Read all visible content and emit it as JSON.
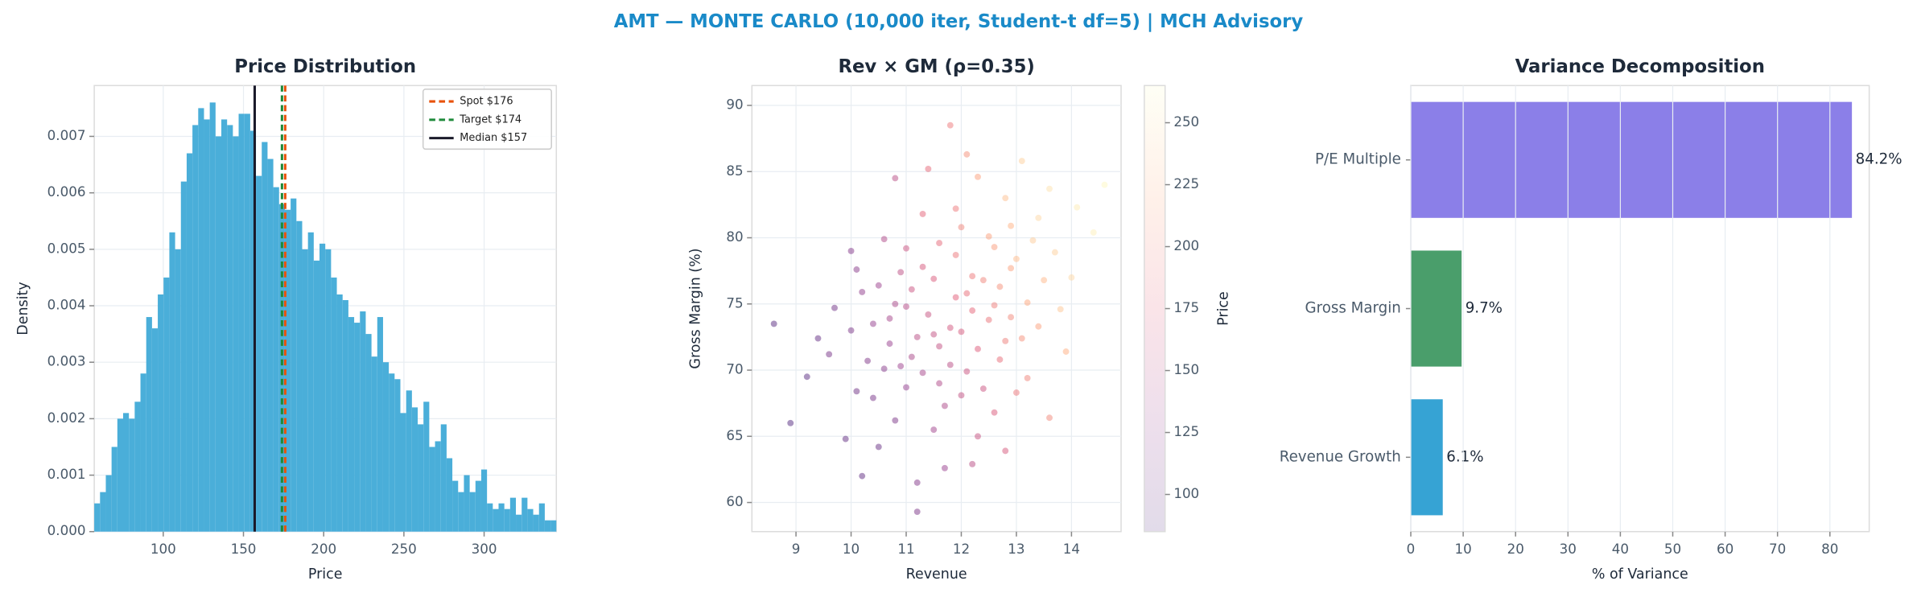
{
  "title": "AMT — MONTE CARLO (10,000 iter, Student-t df=5) | MCH Advisory",
  "chart_data": [
    {
      "type": "histogram",
      "title": "Price Distribution",
      "x_label": "Price",
      "y_label": "Density",
      "color": "#4aaed9",
      "grid": true,
      "bins": [
        57.0,
        60.6,
        64.2,
        67.8,
        71.4,
        75.0,
        78.6,
        82.2,
        85.8,
        89.4,
        93.0,
        96.6,
        100.2,
        103.8,
        107.4,
        111.0,
        114.6,
        118.2,
        121.8,
        125.4,
        129.0,
        132.6,
        136.2,
        139.8,
        143.4,
        147.0,
        150.6,
        154.2,
        157.8,
        161.4,
        165.0,
        168.6,
        172.2,
        175.8,
        179.4,
        183.0,
        186.6,
        190.2,
        193.8,
        197.4,
        201.0,
        204.6,
        208.2,
        211.8,
        215.4,
        219.0,
        222.6,
        226.2,
        229.8,
        233.4,
        237.0,
        240.6,
        244.2,
        247.8,
        251.4,
        255.0,
        258.6,
        262.2,
        265.8,
        269.4,
        273.0,
        276.6,
        280.2,
        283.8,
        287.4,
        291.0,
        294.6,
        298.2,
        301.8,
        305.4,
        309.0,
        312.6,
        316.2,
        319.8,
        323.4,
        327.0,
        330.6,
        334.2,
        337.8,
        341.4,
        345.0
      ],
      "values": [
        0.0005,
        0.0007,
        0.001,
        0.0015,
        0.002,
        0.0021,
        0.002,
        0.0023,
        0.0028,
        0.0038,
        0.0036,
        0.0042,
        0.0045,
        0.0053,
        0.005,
        0.0062,
        0.0067,
        0.0072,
        0.0075,
        0.0073,
        0.0076,
        0.007,
        0.0073,
        0.0072,
        0.007,
        0.0074,
        0.0074,
        0.0071,
        0.0063,
        0.0069,
        0.0066,
        0.0061,
        0.0058,
        0.0057,
        0.0059,
        0.0055,
        0.005,
        0.0053,
        0.0048,
        0.0051,
        0.005,
        0.0045,
        0.0042,
        0.0041,
        0.0038,
        0.0037,
        0.0039,
        0.0035,
        0.0031,
        0.0038,
        0.003,
        0.0028,
        0.0027,
        0.0021,
        0.0025,
        0.0022,
        0.0019,
        0.0023,
        0.0015,
        0.0016,
        0.0019,
        0.0013,
        0.0009,
        0.0007,
        0.001,
        0.0007,
        0.0009,
        0.0011,
        0.0005,
        0.0004,
        0.0005,
        0.0004,
        0.0006,
        0.0003,
        0.0006,
        0.0004,
        0.0003,
        0.0005,
        0.0002,
        0.0002
      ],
      "xlim": [
        57,
        345
      ],
      "xticks": [
        100,
        150,
        200,
        250,
        300
      ],
      "ylim": [
        0,
        0.0079
      ],
      "yticks": [
        {
          "value": 0,
          "label": "0.000"
        },
        0.001,
        0.002,
        0.003,
        0.004,
        0.005,
        0.006,
        0.007
      ],
      "vlines": [
        {
          "name": "Spot $176",
          "value": 176,
          "color": "#e8520a",
          "style": "dashed"
        },
        {
          "name": "Target $174",
          "value": 174,
          "color": "#1e8a3a",
          "style": "dashed"
        },
        {
          "name": "Median $157",
          "value": 157,
          "color": "#1a1a2a",
          "style": "solid"
        }
      ],
      "legend": "upper right"
    },
    {
      "type": "scatter",
      "title": "Rev × GM (ρ=0.35)",
      "x_label": "Revenue",
      "y_label": "Gross Margin (%)",
      "grid": true,
      "x": [
        11.2,
        12.1,
        10.6,
        13.0,
        11.8,
        12.5,
        10.1,
        11.5,
        12.9,
        9.6,
        11.0,
        12.3,
        13.4,
        10.8,
        11.9,
        12.7,
        10.4,
        11.3,
        14.1,
        9.9,
        12.0,
        11.6,
        13.2,
        10.9,
        12.4,
        11.1,
        12.8,
        10.2,
        13.7,
        11.4,
        9.2,
        12.2,
        10.7,
        13.1,
        11.7,
        12.6,
        10.3,
        11.9,
        14.4,
        10.0,
        12.1,
        11.3,
        13.5,
        10.5,
        12.9,
        11.6,
        8.9,
        12.3,
        11.0,
        13.8,
        10.8,
        12.7,
        11.5,
        12.0,
        13.3,
        10.1,
        11.8,
        12.5,
        9.7,
        11.2,
        12.2,
        13.0,
        10.6,
        14.0,
        11.4,
        12.6,
        10.9,
        13.6,
        11.1,
        12.8,
        9.4,
        12.4,
        11.7,
        13.9,
        10.4,
        11.9,
        12.9,
        10.7,
        11.3,
        13.2,
        10.2,
        12.1,
        11.5,
        14.6,
        12.6,
        10.0,
        11.6,
        13.4,
        10.8,
        12.3,
        8.6,
        11.2,
        13.1,
        12.0,
        11.0,
        12.8,
        10.5,
        13.6,
        11.8,
        12.2
      ],
      "values": [
        72.5,
        75.8,
        70.1,
        78.4,
        73.2,
        80.1,
        68.4,
        76.9,
        74.0,
        71.2,
        74.8,
        71.6,
        81.5,
        66.2,
        78.7,
        76.3,
        73.5,
        69.8,
        82.3,
        64.8,
        72.9,
        79.6,
        75.1,
        77.4,
        68.6,
        71.0,
        83.0,
        75.9,
        78.9,
        74.2,
        69.5,
        77.1,
        72.0,
        72.4,
        67.3,
        79.3,
        70.7,
        75.5,
        80.4,
        73.0,
        69.9,
        81.8,
        76.8,
        64.2,
        77.7,
        71.8,
        66.0,
        84.6,
        68.7,
        74.6,
        75.0,
        70.8,
        65.5,
        80.8,
        79.8,
        77.6,
        70.4,
        73.8,
        74.7,
        61.5,
        62.9,
        68.3,
        79.9,
        77.0,
        85.2,
        66.8,
        70.3,
        83.7,
        76.1,
        72.2,
        72.4,
        76.8,
        62.6,
        71.4,
        67.9,
        82.2,
        80.9,
        73.9,
        77.8,
        69.4,
        62.0,
        86.3,
        72.7,
        84.0,
        74.9,
        79.0,
        69.0,
        73.3,
        84.5,
        65.0,
        73.5,
        59.3,
        85.8,
        68.1,
        79.2,
        63.9,
        76.4,
        66.4,
        88.5,
        74.5
      ],
      "color_values": [
        150,
        185,
        120,
        230,
        165,
        215,
        105,
        170,
        200,
        110,
        148,
        172,
        245,
        112,
        190,
        205,
        128,
        138,
        255,
        96,
        168,
        182,
        218,
        152,
        160,
        140,
        232,
        125,
        240,
        158,
        92,
        192,
        130,
        205,
        142,
        212,
        115,
        175,
        258,
        112,
        160,
        178,
        228,
        100,
        215,
        155,
        88,
        215,
        128,
        235,
        140,
        185,
        135,
        198,
        238,
        120,
        150,
        188,
        105,
        118,
        150,
        190,
        145,
        245,
        182,
        170,
        132,
        250,
        160,
        195,
        98,
        198,
        130,
        222,
        110,
        192,
        225,
        138,
        168,
        198,
        95,
        205,
        155,
        262,
        195,
        118,
        145,
        215,
        150,
        158,
        90,
        112,
        240,
        155,
        160,
        168,
        132,
        200,
        192,
        180
      ],
      "colormap": [
        "#3b0f70",
        "#8c2981",
        "#de4968",
        "#fe9f6d",
        "#fcfdbf"
      ],
      "xlim": [
        8.2,
        14.9
      ],
      "xticks": [
        9,
        10,
        11,
        12,
        13,
        14
      ],
      "ylim": [
        57.8,
        91.5
      ],
      "yticks": [
        60,
        65,
        70,
        75,
        80,
        85,
        90
      ],
      "colorbar_label": "Price",
      "clim": [
        85,
        265
      ],
      "cticks": [
        100,
        125,
        150,
        175,
        200,
        225,
        250
      ]
    },
    {
      "type": "barh",
      "title": "Variance Decomposition",
      "x_label": "% of Variance",
      "grid": true,
      "categories": [
        "P/E Multiple",
        "Gross Margin",
        "Revenue Growth"
      ],
      "values": [
        84.2,
        9.7,
        6.1
      ],
      "value_labels": [
        "84.2%",
        "9.7%",
        "6.1%"
      ],
      "colors": [
        "#8b7fe8",
        "#4a9e6b",
        "#36a3d4"
      ],
      "xlim": [
        0,
        87.5
      ],
      "xticks": [
        0,
        10,
        20,
        30,
        40,
        50,
        60,
        70,
        80
      ]
    }
  ]
}
